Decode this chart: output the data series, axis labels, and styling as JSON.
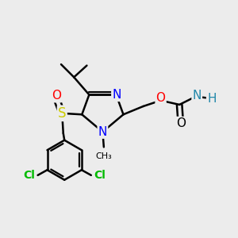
{
  "bg_color": "#ececec",
  "bond_color": "#000000",
  "bond_width": 1.8,
  "figsize": [
    3.0,
    3.0
  ],
  "dpi": 100,
  "colors": {
    "N": "#0000ff",
    "O": "#ff0000",
    "S": "#cccc00",
    "Cl": "#00bb00",
    "NH": "#2288aa",
    "black": "#000000"
  }
}
